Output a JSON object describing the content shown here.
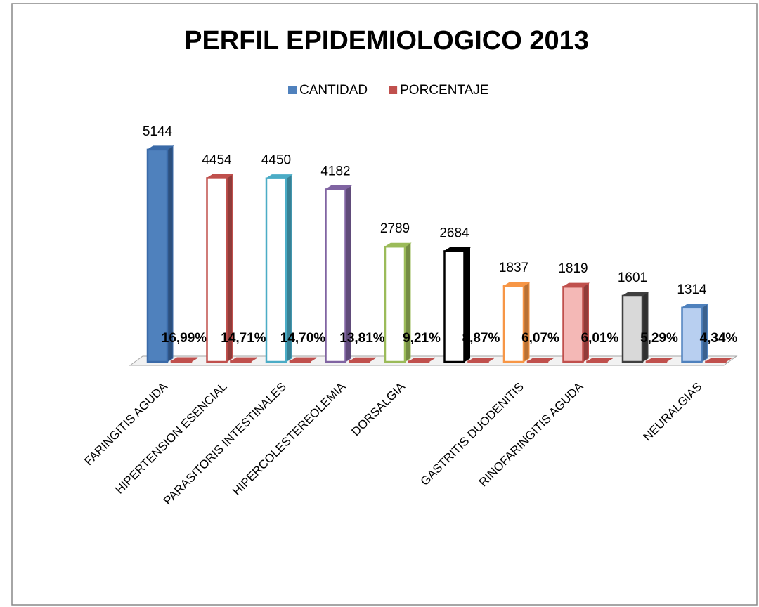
{
  "chart_data": {
    "type": "bar3d",
    "title": "PERFIL EPIDEMIOLOGICO 2013",
    "categories": [
      "FARINGITIS AGUDA",
      "HIPERTENSION ESENCIAL",
      "PARASITORIS INTESTINALES",
      "HIPERCOLESTEREOLEMIA",
      "DORSALGIA",
      null,
      "GASTRITIS DUODENITIS",
      "RINOFARINGITIS AGUDA",
      null,
      "NEURALGIAS"
    ],
    "series": [
      {
        "name": "CANTIDAD",
        "color": "#4f81bd",
        "values": [
          5144,
          4454,
          4450,
          4182,
          2789,
          2684,
          1837,
          1819,
          1601,
          1314
        ],
        "point_colors": [
          "#3a6aa8",
          "#c0504d",
          "#4bacc6",
          "#8064a2",
          "#9bbb59",
          "#000000",
          "#f79646",
          "#c0504d",
          "#404040",
          "#4f81bd"
        ],
        "point_fills": [
          "#4f81bd",
          "#ffffff",
          "#ffffff",
          "#ffffff",
          "#ffffff",
          "#ffffff",
          "#ffffff",
          "#f4b8b6",
          "#d9d9d9",
          "#b8cff0"
        ]
      },
      {
        "name": "PORCENTAJE",
        "color": "#c0504d",
        "values": [
          16.99,
          14.71,
          14.7,
          13.81,
          9.21,
          8.87,
          6.07,
          6.01,
          5.29,
          4.34
        ],
        "value_labels": [
          "16,99%",
          "14,71%",
          "14,70%",
          "13,81%",
          "9,21%",
          "8,87%",
          "6,07%",
          "6,01%",
          "5,29%",
          "4,34%"
        ]
      }
    ],
    "ylim": [
      0,
      5500
    ],
    "legend": "top"
  }
}
